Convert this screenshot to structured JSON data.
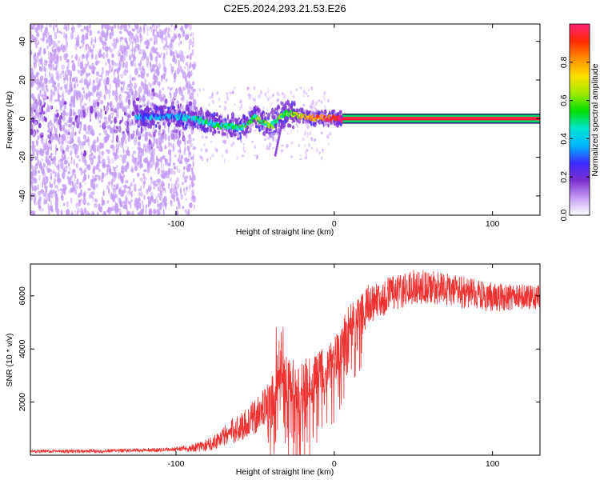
{
  "title": "C2E5.2024.293.21.53.E26",
  "chart_data": [
    {
      "type": "heatmap",
      "name": "spectrogram",
      "xlabel": "Height of straight line (km)",
      "ylabel": "Frequency (Hz)",
      "xlim": [
        -192,
        130
      ],
      "ylim": [
        -50,
        49
      ],
      "xticks": [
        -100,
        0,
        100
      ],
      "yticks": [
        -40,
        -20,
        0,
        20,
        40
      ],
      "noise_region_x": [
        -192,
        -90
      ],
      "track": {
        "x": [
          -110,
          -100,
          -90,
          -85,
          -80,
          -75,
          -70,
          -65,
          -60,
          -55,
          -50,
          -45,
          -40,
          -35,
          -30,
          -25,
          -20,
          -15,
          -10,
          -5,
          0,
          5,
          130
        ],
        "y": [
          1,
          1.5,
          0,
          -1,
          -2,
          -3,
          -4,
          -4,
          -5,
          -3,
          1,
          -2,
          -4,
          0,
          3,
          2,
          1,
          0.5,
          0.2,
          0.2,
          0,
          0,
          0
        ]
      },
      "colorbar": {
        "label": "Normalized spectral amplitude",
        "range": [
          0,
          1
        ],
        "ticks": [
          0.0,
          0.2,
          0.4,
          0.6,
          0.8
        ],
        "tick_labels": [
          "0.0",
          "0.2",
          "0.4",
          "0.6",
          "0.8"
        ],
        "colors": [
          "#ffffff",
          "#c49cf5",
          "#7b2fd0",
          "#3c2bff",
          "#00b7ff",
          "#00e5d0",
          "#00e000",
          "#9eea00",
          "#ffe000",
          "#ff9000",
          "#ff2a00",
          "#ff1e78"
        ]
      }
    },
    {
      "type": "line",
      "name": "snr",
      "xlabel": "Height of straight line (km)",
      "ylabel": "SNR (10 * v/v)",
      "xlim": [
        -192,
        130
      ],
      "ylim": [
        0,
        7200
      ],
      "xticks": [
        -100,
        0,
        100
      ],
      "yticks": [
        2000,
        4000,
        6000
      ],
      "color": "#ee3333",
      "trend": {
        "x": [
          -192,
          -150,
          -110,
          -90,
          -80,
          -70,
          -60,
          -50,
          -40,
          -35,
          -30,
          -25,
          -20,
          -15,
          -10,
          -5,
          0,
          5,
          10,
          15,
          20,
          30,
          40,
          50,
          60,
          70,
          80,
          90,
          100,
          110,
          120,
          130
        ],
        "y": [
          150,
          160,
          200,
          280,
          400,
          750,
          1100,
          1500,
          2200,
          3300,
          2800,
          2600,
          2700,
          2900,
          3100,
          3300,
          3600,
          4400,
          5000,
          5400,
          5700,
          6000,
          6200,
          6400,
          6400,
          6300,
          6200,
          6100,
          6000,
          6000,
          6000,
          6000
        ]
      },
      "spread": {
        "x": [
          -192,
          -100,
          -80,
          -60,
          -40,
          -30,
          -10,
          0,
          20,
          40,
          80,
          130
        ],
        "y": [
          120,
          150,
          450,
          1100,
          1500,
          2200,
          1800,
          1700,
          1500,
          1300,
          1200,
          900
        ]
      }
    }
  ]
}
